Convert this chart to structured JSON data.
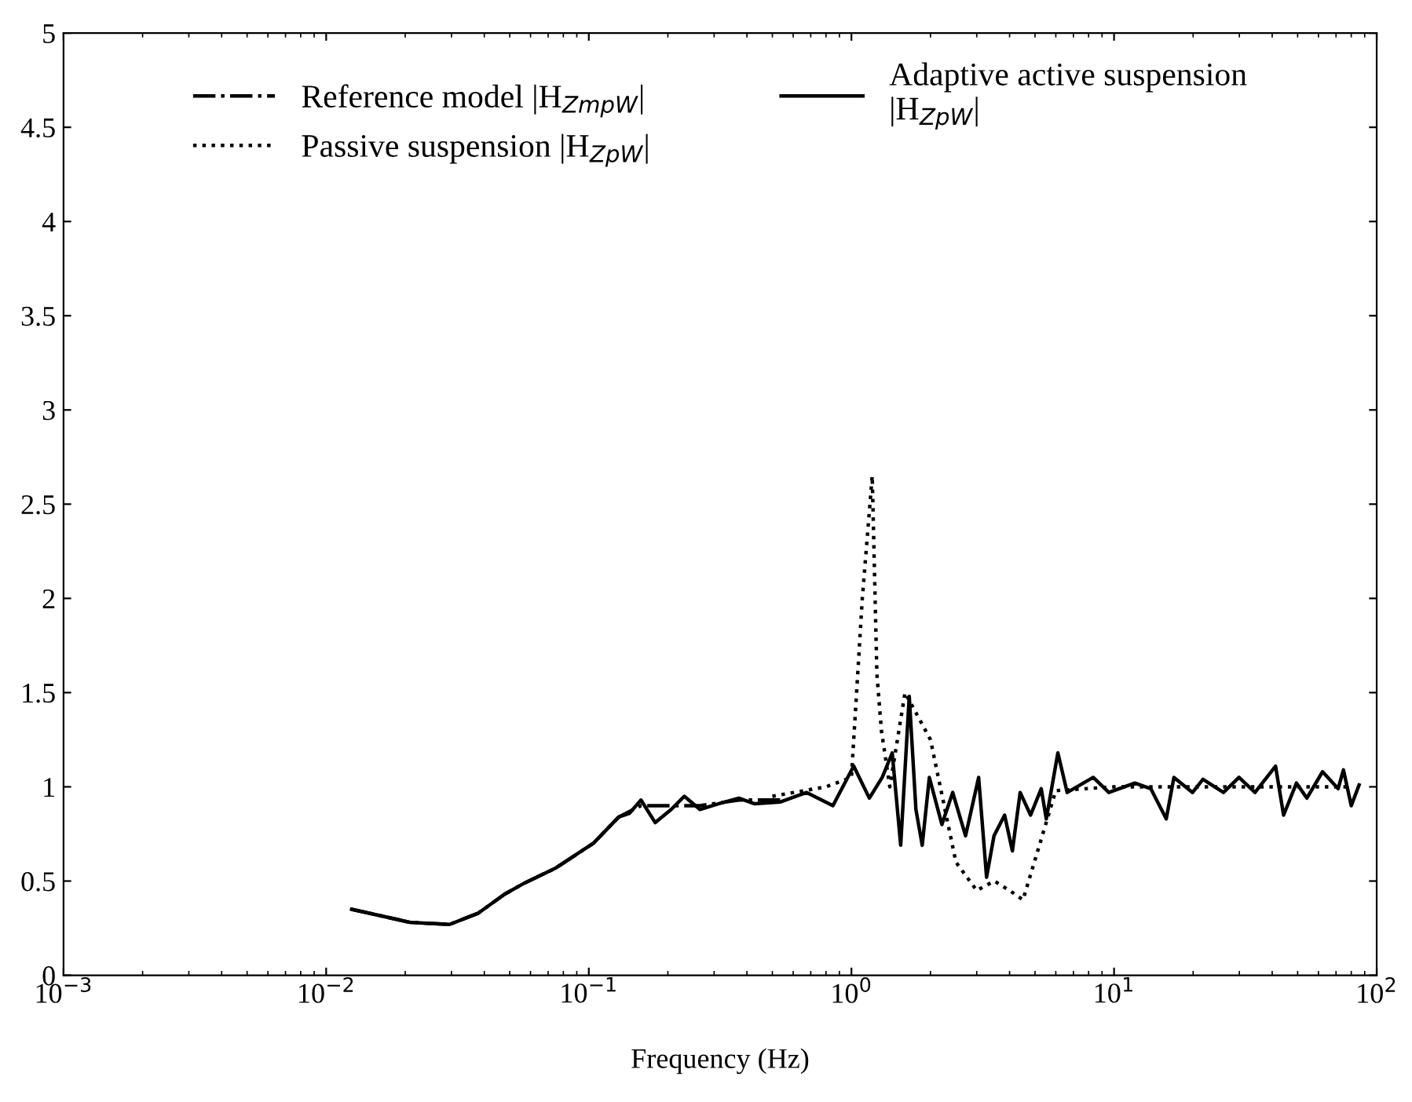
{
  "chart_data": {
    "type": "line",
    "xlabel": "Frequency (Hz)",
    "log": "x",
    "xlim": [
      0.001,
      100
    ],
    "ylim": [
      0,
      5
    ],
    "xticks": [
      {
        "value": 0.001,
        "label": "10$^{−3}$"
      },
      {
        "value": 0.01,
        "label": "10$^{−2}$"
      },
      {
        "value": 0.1,
        "label": "10$^{−1}$"
      },
      {
        "value": 1,
        "label": "10$^{0}$"
      },
      {
        "value": 10,
        "label": "10$^{1}$"
      },
      {
        "value": 100,
        "label": "10$^{2}$"
      }
    ],
    "yticks": [
      0,
      0.5,
      1,
      1.5,
      2,
      2.5,
      3,
      3.5,
      4,
      4.5,
      5
    ],
    "grid": false,
    "legend": "top",
    "series": [
      {
        "name": "Reference model |H$_{ZmpW}$|",
        "color": "#000000",
        "line_style": "dashdot",
        "x": [
          0.0125,
          0.021,
          0.0295,
          0.038,
          0.0478,
          0.057,
          0.075,
          0.104,
          0.13,
          0.158,
          0.206,
          0.265,
          0.373,
          0.537
        ],
        "values": [
          0.35,
          0.28,
          0.27,
          0.33,
          0.43,
          0.49,
          0.57,
          0.7,
          0.84,
          0.9,
          0.9,
          0.9,
          0.93,
          0.93
        ]
      },
      {
        "name": "Passive suspension |H$_{ZpW}$|",
        "color": "#000000",
        "line_style": "dotted",
        "x": [
          0.5,
          0.8,
          1.0,
          1.1,
          1.2,
          1.25,
          1.3,
          1.4,
          1.6,
          2.0,
          2.5,
          3.0,
          3.5,
          4.0,
          4.5,
          6,
          10,
          80
        ],
        "values": [
          0.95,
          1.0,
          1.05,
          2.0,
          2.65,
          1.6,
          1.3,
          1.0,
          1.5,
          1.25,
          0.6,
          0.45,
          0.5,
          0.45,
          0.4,
          0.98,
          1.0,
          1.0
        ]
      },
      {
        "name": "Adaptive active suspension\n|H$_{ZpW}$|",
        "color": "#000000",
        "line_style": "solid",
        "x": [
          0.0125,
          0.021,
          0.0295,
          0.038,
          0.0478,
          0.057,
          0.075,
          0.104,
          0.13,
          0.143,
          0.158,
          0.179,
          0.206,
          0.231,
          0.265,
          0.311,
          0.373,
          0.428,
          0.537,
          0.675,
          0.85,
          1.02,
          1.17,
          1.31,
          1.43,
          1.54,
          1.66,
          1.76,
          1.86,
          1.98,
          2.21,
          2.43,
          2.72,
          3.05,
          3.27,
          3.49,
          3.83,
          4.1,
          4.39,
          4.81,
          5.28,
          5.52,
          6.11,
          6.63,
          8.33,
          9.55,
          12.0,
          13.8,
          15.8,
          16.9,
          19.9,
          21.8,
          26.1,
          29.9,
          34.4,
          41.2,
          44.2,
          49.5,
          54.2,
          62.2,
          71.3,
          74.7,
          80.0,
          85.7
        ],
        "values": [
          0.35,
          0.28,
          0.27,
          0.33,
          0.43,
          0.49,
          0.57,
          0.7,
          0.84,
          0.86,
          0.93,
          0.81,
          0.88,
          0.95,
          0.88,
          0.91,
          0.94,
          0.91,
          0.92,
          0.97,
          0.9,
          1.11,
          0.94,
          1.05,
          1.18,
          0.69,
          1.48,
          0.88,
          0.69,
          1.05,
          0.8,
          0.97,
          0.74,
          1.05,
          0.52,
          0.74,
          0.85,
          0.66,
          0.97,
          0.85,
          0.99,
          0.83,
          1.18,
          0.97,
          1.05,
          0.97,
          1.02,
          0.99,
          0.83,
          1.05,
          0.97,
          1.04,
          0.97,
          1.05,
          0.97,
          1.11,
          0.85,
          1.02,
          0.94,
          1.08,
          0.99,
          1.09,
          0.9,
          1.01
        ]
      }
    ]
  }
}
